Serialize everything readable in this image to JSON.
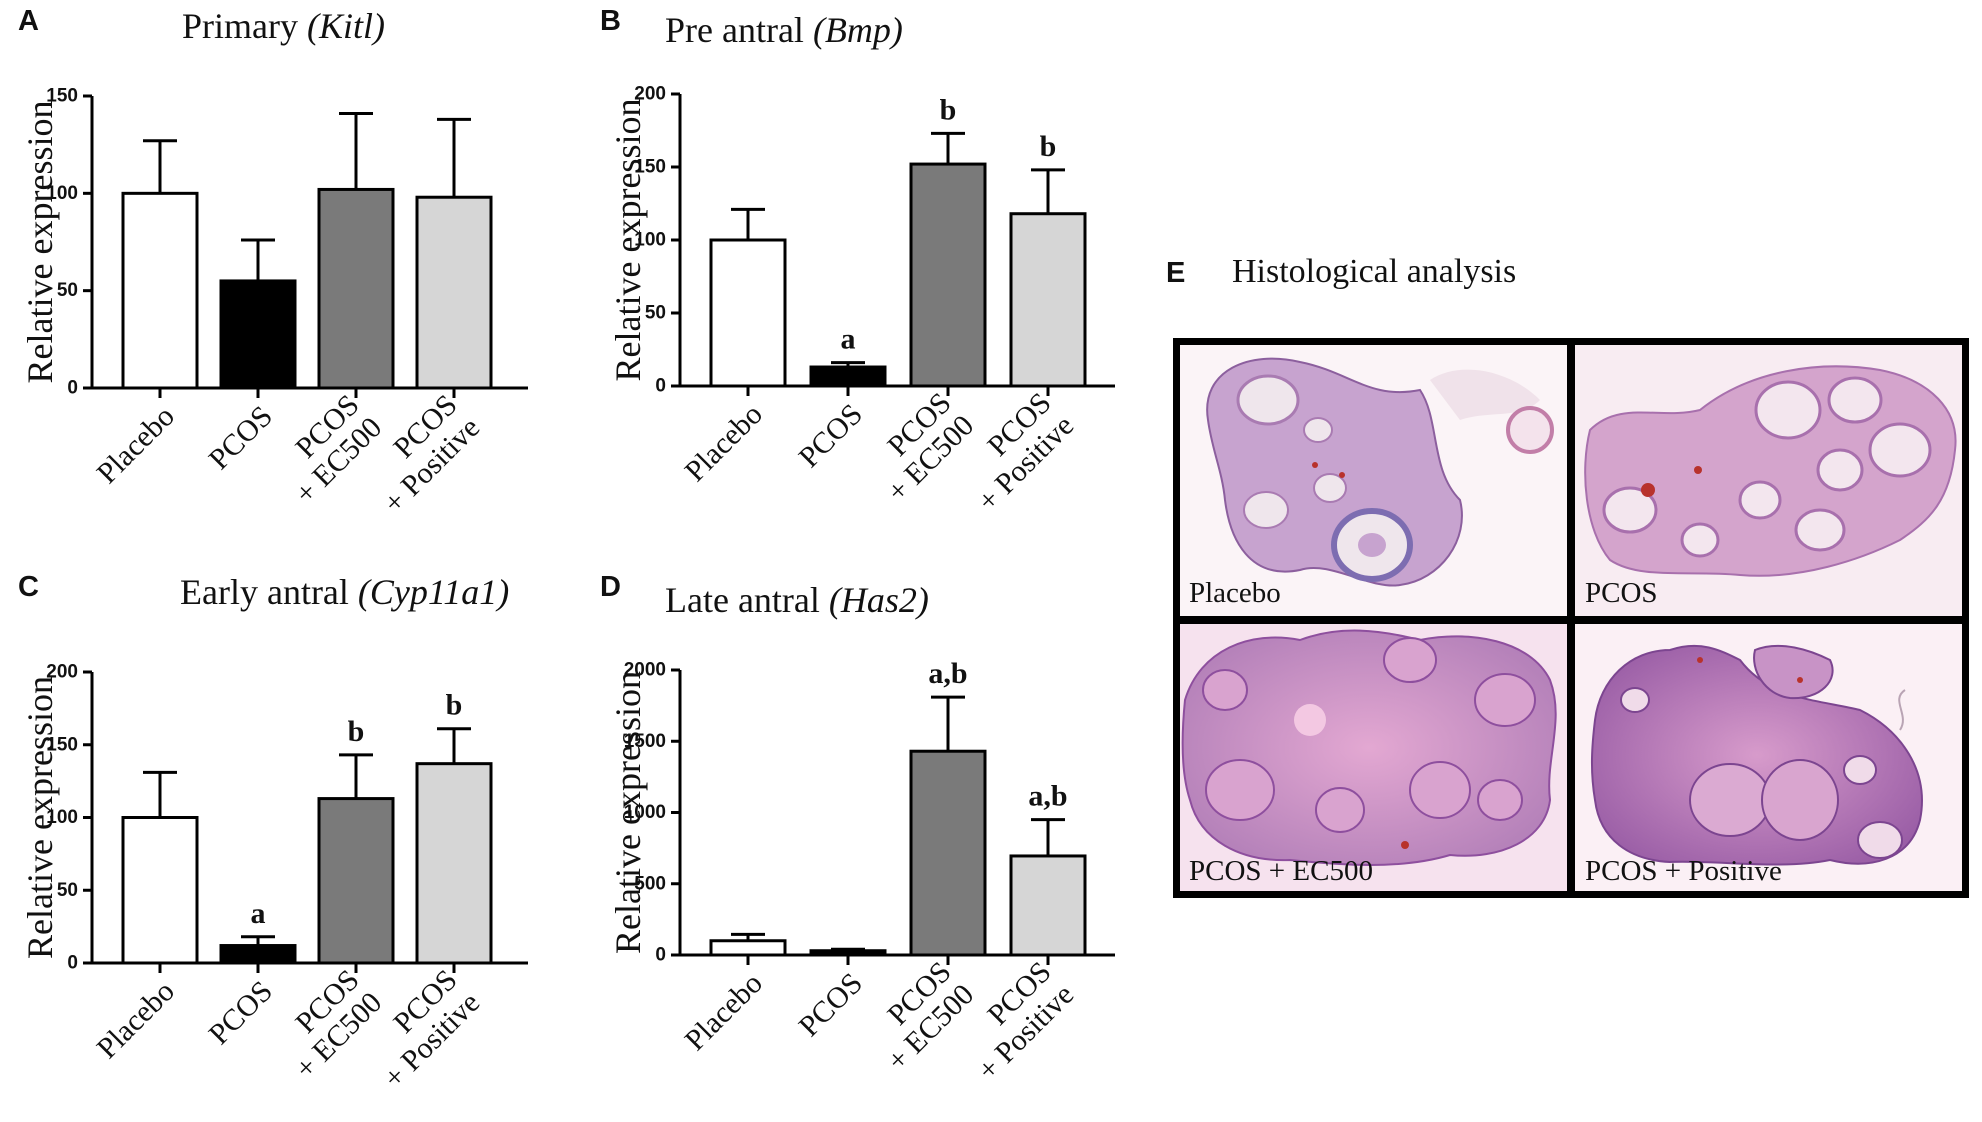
{
  "colors": {
    "placebo": "#ffffff",
    "pcos": "#000000",
    "ec500": "#7a7a7a",
    "positive": "#d6d6d6",
    "tissue": "#c98bbf",
    "tissue_bg": "#f6e4ef"
  },
  "panels": [
    {
      "id": "A",
      "label": "A"
    },
    {
      "id": "B",
      "label": "B"
    },
    {
      "id": "C",
      "label": "C"
    },
    {
      "id": "D",
      "label": "D"
    }
  ],
  "chart_data": [
    {
      "panel": "A",
      "type": "bar",
      "title": "Primary",
      "title_italic": "(Kitl)",
      "ylabel": "Relative expression",
      "ylim": [
        0,
        150
      ],
      "yticks": [
        "0",
        "50",
        "100",
        "150"
      ],
      "categories": [
        [
          "Placebo"
        ],
        [
          "PCOS"
        ],
        [
          "PCOS",
          "+ EC500"
        ],
        [
          "PCOS",
          "+ Positive"
        ]
      ],
      "values": [
        100,
        55,
        102,
        98
      ],
      "errors": [
        27,
        21,
        39,
        40
      ],
      "significance": [
        "",
        "",
        "",
        ""
      ]
    },
    {
      "panel": "B",
      "type": "bar",
      "title": "Pre antral",
      "title_italic": "(Bmp)",
      "ylabel": "Relative expression",
      "ylim": [
        0,
        200
      ],
      "yticks": [
        "0",
        "50",
        "100",
        "150",
        "200"
      ],
      "categories": [
        [
          "Placebo"
        ],
        [
          "PCOS"
        ],
        [
          "PCOS",
          "+ EC500"
        ],
        [
          "PCOS",
          "+ Positive"
        ]
      ],
      "values": [
        100,
        13,
        152,
        118
      ],
      "errors": [
        21,
        3,
        21,
        30
      ],
      "significance": [
        "",
        "a",
        "b",
        "b"
      ]
    },
    {
      "panel": "C",
      "type": "bar",
      "title": "Early antral",
      "title_italic": "(Cyp11a1)",
      "ylabel": "Relative expression",
      "ylim": [
        0,
        200
      ],
      "yticks": [
        "0",
        "50",
        "100",
        "150",
        "200"
      ],
      "categories": [
        [
          "Placebo"
        ],
        [
          "PCOS"
        ],
        [
          "PCOS",
          "+ EC500"
        ],
        [
          "PCOS",
          "+ Positive"
        ]
      ],
      "values": [
        100,
        12,
        113,
        137
      ],
      "errors": [
        31,
        6,
        30,
        24
      ],
      "significance": [
        "",
        "a",
        "b",
        "b"
      ]
    },
    {
      "panel": "D",
      "type": "bar",
      "title": "Late antral",
      "title_italic": "(Has2)",
      "ylabel": "Relative expression",
      "ylim": [
        0,
        2000
      ],
      "yticks": [
        "0",
        "500",
        "1000",
        "1500",
        "2000"
      ],
      "categories": [
        [
          "Placebo"
        ],
        [
          "PCOS"
        ],
        [
          "PCOS",
          "+ EC500"
        ],
        [
          "PCOS",
          "+ Positive"
        ]
      ],
      "values": [
        100,
        30,
        1430,
        695
      ],
      "errors": [
        45,
        10,
        380,
        255
      ],
      "significance": [
        "",
        "",
        "a,b",
        "a,b"
      ]
    }
  ],
  "histology": {
    "label": "E",
    "title": "Histological analysis",
    "images": [
      {
        "label": "Placebo"
      },
      {
        "label": "PCOS"
      },
      {
        "label": "PCOS + EC500"
      },
      {
        "label": "PCOS + Positive"
      }
    ]
  }
}
